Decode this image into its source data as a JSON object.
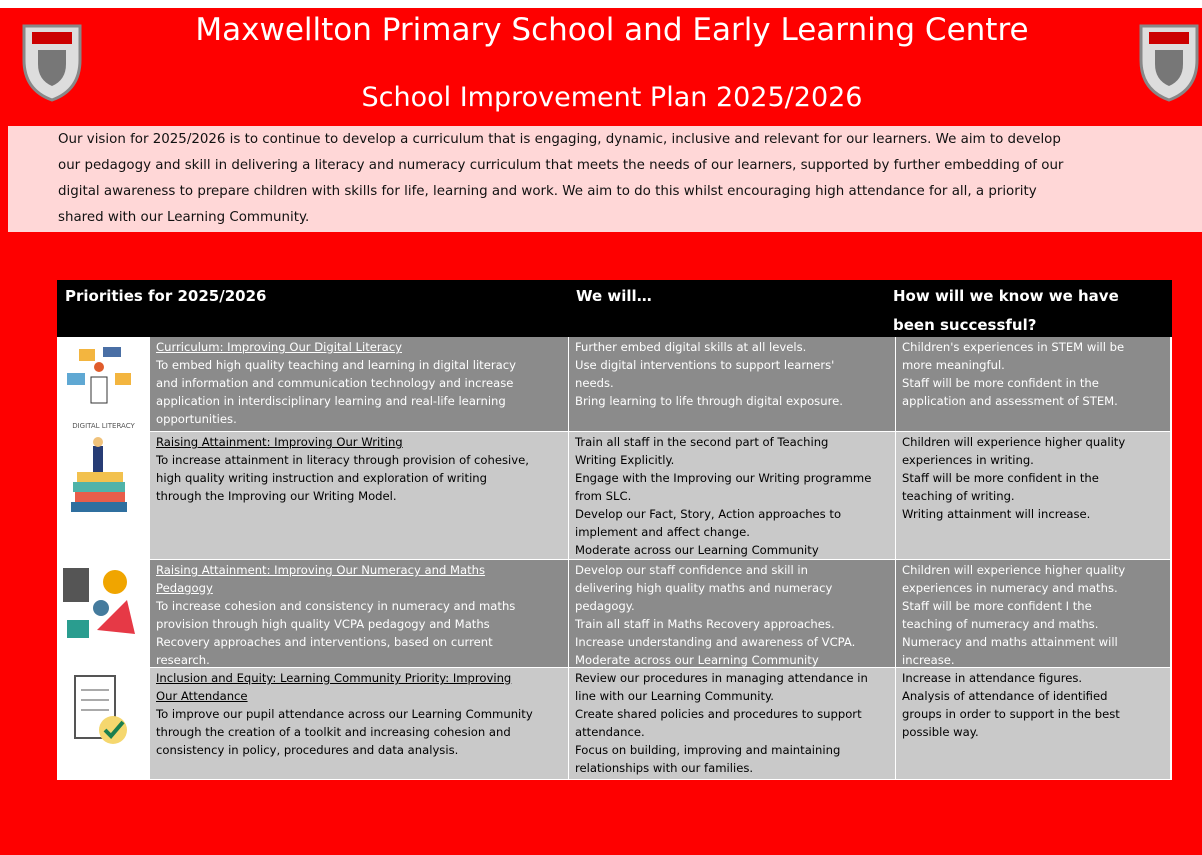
{
  "header": {
    "title": "Maxwellton Primary School and Early Learning Centre",
    "subtitle": "School Improvement Plan 2025/2026"
  },
  "vision": {
    "lines": [
      "Our vision for 2025/2026 is to continue to develop a curriculum that is engaging, dynamic, inclusive and relevant for our learners.  We aim to develop",
      "our pedagogy and skill in delivering a literacy and numeracy curriculum that meets the needs of our learners, supported by further embedding of our",
      "digital awareness to prepare children with skills for life, learning and work.  We aim to do this whilst encouraging high attendance for all, a priority",
      "shared with our Learning Community."
    ]
  },
  "table": {
    "headers": [
      "Priorities for 2025/2026",
      "We will…",
      "How will we know we have been successful?"
    ],
    "rows": [
      {
        "icon_label": "DIGITAL LITERACY",
        "title": [
          "Curriculum: Improving Our Digital Literacy"
        ],
        "description": [
          "To embed high quality teaching and learning in digital literacy",
          "and information and communication technology and increase",
          "application in interdisciplinary learning and real-life learning",
          "opportunities."
        ],
        "we_will": [
          "Further embed digital skills at all levels.",
          "Use digital interventions to support learners'",
          "needs.",
          "Bring learning to life through digital exposure."
        ],
        "success": [
          "Children's experiences in STEM will be",
          "more meaningful.",
          "Staff will be more confident in the",
          "application and assessment of STEM."
        ]
      },
      {
        "title": [
          "Raising Attainment: Improving Our Writing"
        ],
        "description": [
          "To increase attainment in literacy through provision of cohesive,",
          "high quality writing instruction and exploration of writing",
          "through the Improving our Writing Model."
        ],
        "we_will": [
          "Train all staff in the second part of Teaching",
          "Writing Explicitly.",
          "Engage with the Improving our Writing programme",
          "from SLC.",
          "Develop our Fact, Story, Action approaches to",
          "implement and affect change.",
          "Moderate across our Learning Community"
        ],
        "success": [
          "Children will experience higher quality",
          "experiences in writing.",
          "Staff will be more confident in the",
          "teaching of writing.",
          "Writing attainment will increase."
        ]
      },
      {
        "title": [
          "Raising Attainment: Improving Our Numeracy and Maths",
          "Pedagogy"
        ],
        "description": [
          "To increase cohesion and consistency in numeracy and maths",
          "provision through high quality VCPA pedagogy and Maths",
          "Recovery approaches and interventions, based on current",
          "research."
        ],
        "we_will": [
          "Develop our staff confidence and skill in",
          "delivering high quality maths and numeracy",
          "pedagogy.",
          "Train all staff in Maths Recovery approaches.",
          "Increase understanding and awareness of VCPA.",
          "Moderate across our Learning Community"
        ],
        "success": [
          "Children will experience higher quality",
          "experiences in numeracy and maths.",
          "Staff will be more confident I the",
          "teaching of numeracy and maths.",
          "Numeracy and maths attainment will",
          "increase."
        ]
      },
      {
        "title": [
          "Inclusion and Equity: Learning Community Priority: Improving",
          "Our Attendance"
        ],
        "description": [
          "To improve our pupil attendance across our Learning Community",
          "through the creation of a toolkit and increasing cohesion and",
          "consistency in policy, procedures and data analysis."
        ],
        "we_will": [
          "Review our procedures in managing attendance in",
          "line with our Learning Community.",
          "Create shared policies and procedures to support",
          "attendance.",
          "Focus on building, improving and maintaining",
          "relationships with our families."
        ],
        "success": [
          "Increase in attendance figures.",
          "Analysis of attendance of identified",
          "groups in order to support in the best",
          "possible way."
        ]
      }
    ]
  }
}
